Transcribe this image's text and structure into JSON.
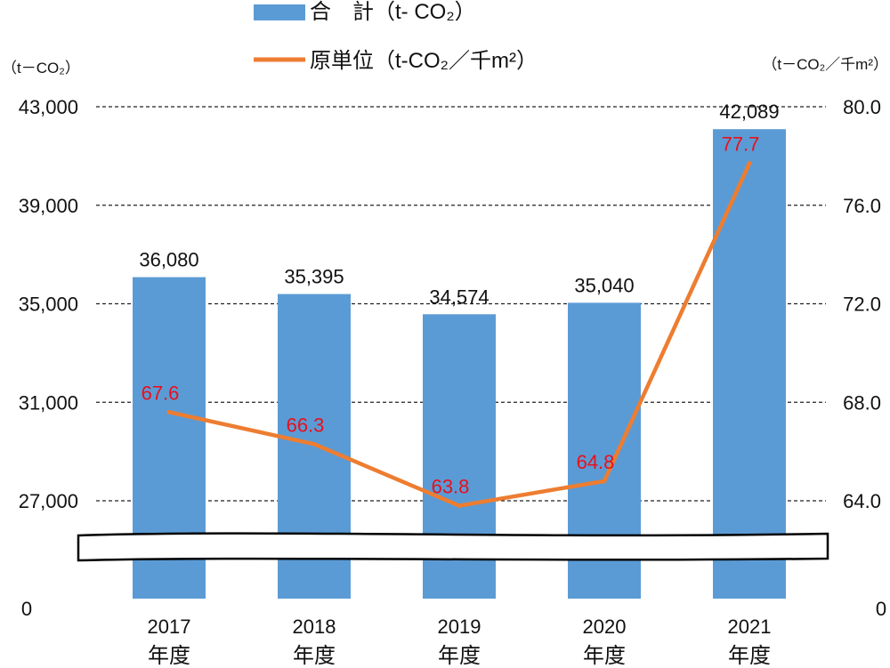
{
  "legend": {
    "bar_label": "合　計（t- CO₂）",
    "line_label": "原単位（t-CO₂／千m²）"
  },
  "axis": {
    "left_unit": "（t－CO₂）",
    "right_unit": "（t－CO₂／千m²）",
    "left_zero": "0",
    "right_zero": "0"
  },
  "colors": {
    "bar": "#5b9bd5",
    "line": "#ed7d31",
    "line_label": "#e8101c",
    "text": "#111111"
  },
  "chart_data": {
    "type": "bar",
    "categories": [
      [
        "2017",
        "年度"
      ],
      [
        "2018",
        "年度"
      ],
      [
        "2019",
        "年度"
      ],
      [
        "2020",
        "年度"
      ],
      [
        "2021",
        "年度"
      ]
    ],
    "series": [
      {
        "name": "合　計（t- CO₂）",
        "type": "bar",
        "axis": "left",
        "values": [
          36080,
          35395,
          34574,
          35040,
          42089
        ],
        "labels": [
          "36,080",
          "35,395",
          "34,574",
          "35,040",
          "42,089"
        ]
      },
      {
        "name": "原単位（t-CO₂／千m²）",
        "type": "line",
        "axis": "right",
        "values": [
          67.6,
          66.3,
          63.8,
          64.8,
          77.7
        ],
        "labels": [
          "67.6",
          "66.3",
          "63.8",
          "64.8",
          "77.7"
        ]
      }
    ],
    "left_axis": {
      "ticks": [
        27000,
        31000,
        35000,
        39000,
        43000
      ],
      "tick_labels": [
        "27,000",
        "31,000",
        "35,000",
        "39,000",
        "43,000"
      ],
      "range": [
        27000,
        43000
      ],
      "broken_below": 27000
    },
    "right_axis": {
      "ticks": [
        64.0,
        68.0,
        72.0,
        76.0,
        80.0
      ],
      "tick_labels": [
        "64.0",
        "68.0",
        "72.0",
        "76.0",
        "80.0"
      ],
      "range": [
        64.0,
        80.0
      ],
      "broken_below": 64.0
    },
    "grid": "dashed",
    "legend_position": "top"
  }
}
